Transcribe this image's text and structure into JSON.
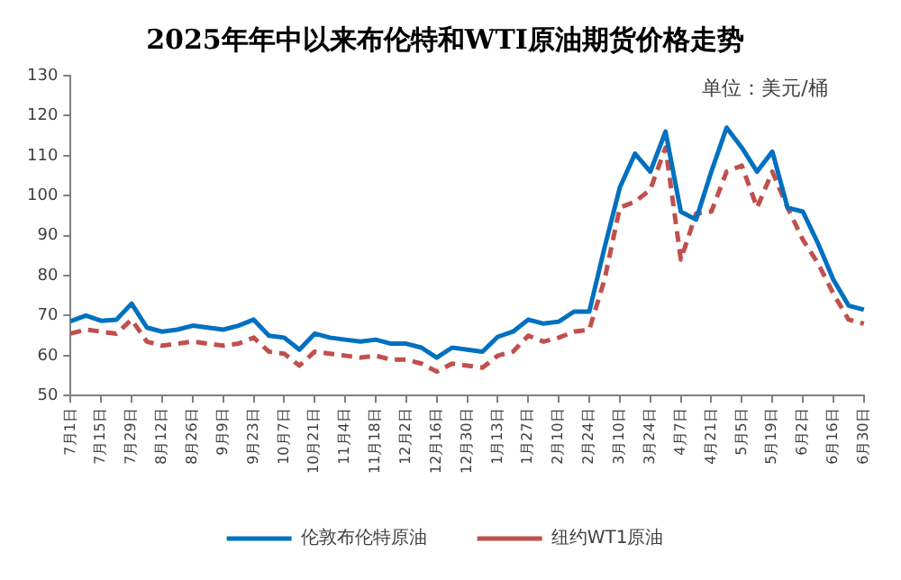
{
  "chart_data": {
    "type": "line",
    "title": "2025年年中以来布伦特和WTI原油期货价格走势",
    "annotations": [
      "单位：美元/桶"
    ],
    "categories": [
      "7月1日",
      null,
      "7月15日",
      null,
      "7月29日",
      null,
      "8月12日",
      null,
      "8月26日",
      null,
      "9月9日",
      null,
      "9月23日",
      null,
      "10月7日",
      null,
      "10月21日",
      null,
      "11月4日",
      null,
      "11月18日",
      null,
      "12月2日",
      null,
      "12月16日",
      null,
      "12月30日",
      null,
      "1月13日",
      null,
      "1月27日",
      null,
      "2月10日",
      null,
      "2月24日",
      null,
      "3月10日",
      null,
      "3月24日",
      null,
      "4月7日",
      null,
      "4月21日",
      null,
      "5月5日",
      null,
      "5月19日",
      null,
      "6月2日",
      null,
      "6月16日",
      null,
      "6月30日"
    ],
    "series": [
      {
        "name": "伦敦布伦特原油",
        "color": "#0070c0",
        "line_style": "solid",
        "values": [
          68.6,
          70,
          68.7,
          69,
          73,
          67,
          66,
          66.5,
          67.5,
          67,
          66.5,
          67.5,
          69,
          65,
          64.5,
          61.5,
          65.5,
          64.5,
          64,
          63.5,
          64,
          63,
          63,
          62,
          59.5,
          62,
          61.5,
          61,
          64.7,
          66,
          69,
          68,
          68.5,
          71,
          71,
          87,
          102,
          110.5,
          106,
          116,
          96,
          94,
          106,
          117,
          112,
          106,
          111,
          97,
          96,
          88,
          79,
          72.5,
          71.5
        ]
      },
      {
        "name": "纽约WT1原油",
        "color": "#c0504d",
        "line_style": "dashed",
        "values": [
          65.5,
          66.5,
          66,
          65.5,
          69,
          63.5,
          62.5,
          63,
          63.5,
          63,
          62.5,
          63,
          64.5,
          61,
          60.5,
          57.5,
          61,
          60.5,
          60,
          59.5,
          60,
          59,
          59,
          58,
          56,
          58,
          57.5,
          57,
          60,
          61,
          65,
          63.5,
          64.5,
          66,
          66.5,
          79,
          97,
          98.5,
          101.5,
          112,
          84,
          95.5,
          96,
          106,
          107.5,
          97,
          106,
          97,
          89,
          83,
          75.5,
          69,
          68
        ]
      }
    ],
    "ylim": [
      50,
      130
    ],
    "yticks": [
      50,
      60,
      70,
      80,
      90,
      100,
      110,
      120,
      130
    ],
    "grid": false,
    "legend": "bottom",
    "marker": "none"
  }
}
